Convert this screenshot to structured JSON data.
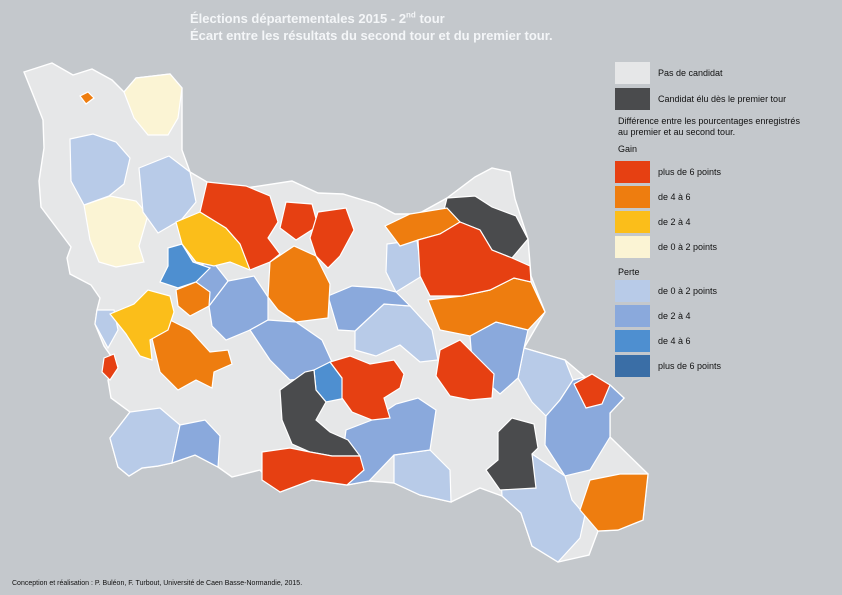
{
  "title": {
    "line1_main": "Élections départementales 2015 - 2",
    "line1_sup": "nd",
    "line1_tail": " tour",
    "line2": "Écart entre les résultats du second tour et du premier tour."
  },
  "legend": {
    "no_candidate": "Pas de candidat",
    "elected_first_round": "Candidat élu dès le premier tour",
    "note": "Différence entre les pourcentages enregistrés au premier et au second tour.",
    "gain_heading": "Gain",
    "gain_items": [
      {
        "label": "plus de 6 points",
        "color": "#e64012"
      },
      {
        "label": "de 4 à 6",
        "color": "#ee7d0f"
      },
      {
        "label": "de 2 à 4",
        "color": "#fbbe1a"
      },
      {
        "label": "de 0 à 2 points",
        "color": "#fbf4d4"
      }
    ],
    "loss_heading": "Perte",
    "loss_items": [
      {
        "label": "de 0 à 2 points",
        "color": "#b8cbe8"
      },
      {
        "label": "de 2 à 4",
        "color": "#8aa9dc"
      },
      {
        "label": "de 4 à 6",
        "color": "#4e8fd0"
      },
      {
        "label": "plus de 6 points",
        "color": "#3a6ea6"
      }
    ],
    "no_candidate_color": "#e6e7e8",
    "elected_color": "#4a4b4d"
  },
  "credit": "Conception et réalisation : P. Buléon, F. Turbout, Université de Caen Basse-Normandie, 2015."
}
